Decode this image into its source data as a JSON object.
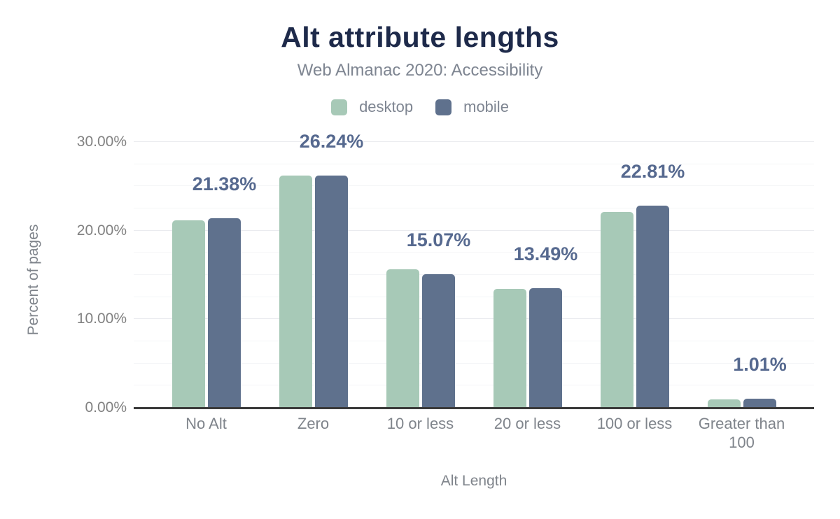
{
  "header": {
    "title": "Alt attribute lengths",
    "subtitle": "Web Almanac 2020: Accessibility"
  },
  "legend": [
    {
      "label": "desktop",
      "color": "#a7c9b7"
    },
    {
      "label": "mobile",
      "color": "#5f718d"
    }
  ],
  "colors": {
    "title": "#1e2a4a",
    "subtitle_gray": "#7e8591",
    "axis_gray": "#7f848b",
    "data_label": "#56698f",
    "axis_line": "#3a3a3a",
    "desktop_bar": "#a7c9b7",
    "mobile_bar": "#5f718d"
  },
  "chart_data": {
    "type": "bar",
    "title": "Alt attribute lengths",
    "subtitle": "Web Almanac 2020: Accessibility",
    "categories": [
      "No Alt",
      "Zero",
      "10 or less",
      "20 or less",
      "100 or less",
      "Greater than 100"
    ],
    "series": [
      {
        "name": "desktop",
        "color": "#a7c9b7",
        "values": [
          21.15,
          26.2,
          15.6,
          13.4,
          22.1,
          0.93
        ]
      },
      {
        "name": "mobile",
        "color": "#5f718d",
        "values": [
          21.38,
          26.24,
          15.07,
          13.49,
          22.81,
          1.01
        ]
      }
    ],
    "data_labels": [
      "21.38%",
      "26.24%",
      "15.07%",
      "13.49%",
      "22.81%",
      "1.01%"
    ],
    "data_label_series": "mobile",
    "xlabel": "Alt Length",
    "ylabel": "Percent of pages",
    "ylim": [
      0,
      30
    ],
    "ytick_labels": [
      "0.00%",
      "10.00%",
      "20.00%",
      "30.00%"
    ],
    "ytick_values": [
      0,
      10,
      20,
      30
    ],
    "grid": {
      "on": true,
      "minor_step": 2.5,
      "major_step": 10
    },
    "legend_position": "top"
  }
}
